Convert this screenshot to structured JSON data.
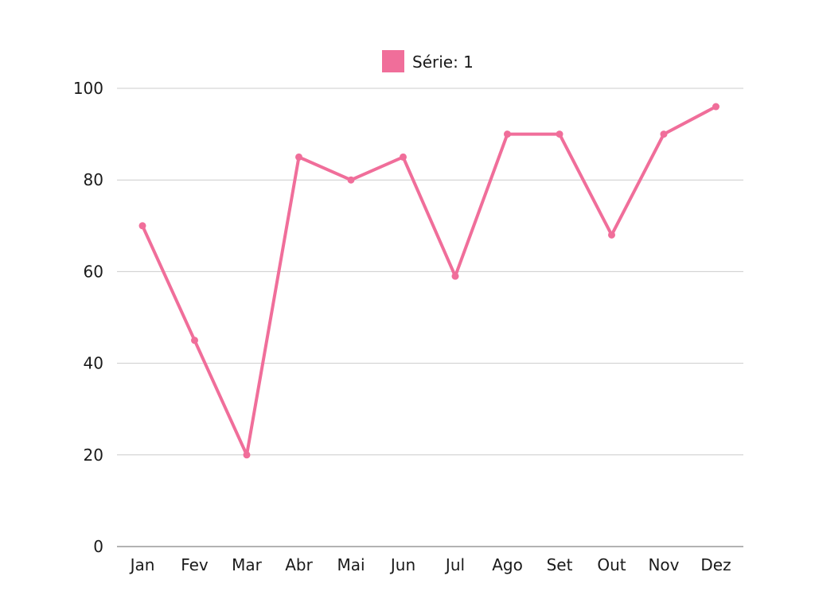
{
  "chart_data": {
    "type": "line",
    "categories": [
      "Jan",
      "Fev",
      "Mar",
      "Abr",
      "Mai",
      "Jun",
      "Jul",
      "Ago",
      "Set",
      "Out",
      "Nov",
      "Dez"
    ],
    "series": [
      {
        "name": "Série: 1",
        "values": [
          70,
          45,
          20,
          85,
          80,
          85,
          59,
          90,
          90,
          68,
          90,
          96
        ],
        "color": "#f06e9a"
      }
    ],
    "y_ticks": [
      "0",
      "20",
      "40",
      "60",
      "80",
      "100"
    ],
    "ylim": [
      0,
      100
    ],
    "grid": true,
    "legend_position": "top-center",
    "title": "",
    "xlabel": "",
    "ylabel": ""
  }
}
